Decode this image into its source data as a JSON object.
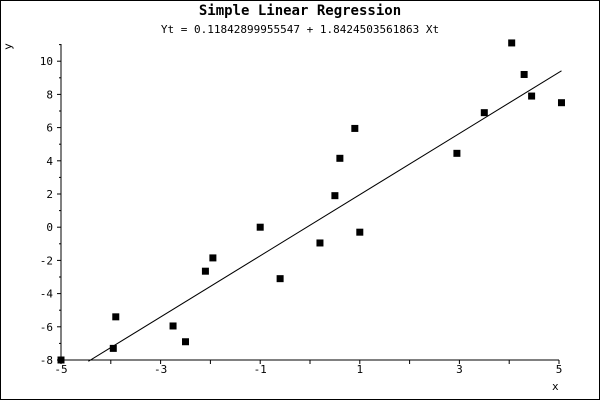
{
  "chart_data": {
    "type": "scatter",
    "title": "Simple Linear Regression",
    "subtitle": "Yt = 0.11842899955547 + 1.8424503561863 Xt",
    "xlabel": "x",
    "ylabel": "y",
    "xlim": [
      -5,
      5
    ],
    "ylim": [
      -8,
      11
    ],
    "x_ticks": [
      -5,
      -3,
      -1,
      1,
      3,
      5
    ],
    "y_ticks": [
      -8,
      -6,
      -4,
      -2,
      0,
      2,
      4,
      6,
      8,
      10
    ],
    "grid": false,
    "series": [
      {
        "marker": "square",
        "x": [
          -5.0,
          -3.95,
          -3.9,
          -2.75,
          -2.5,
          -2.1,
          -1.95,
          -1.0,
          -0.6,
          0.2,
          0.5,
          0.6,
          0.9,
          1.0,
          2.95,
          3.5,
          4.05,
          4.3,
          4.45,
          5.05
        ],
        "y": [
          -8.0,
          -7.3,
          -5.4,
          -5.95,
          -6.9,
          -2.65,
          -1.85,
          0.0,
          -3.1,
          -0.95,
          1.9,
          4.15,
          5.95,
          -0.3,
          4.45,
          6.9,
          11.1,
          9.2,
          7.9,
          7.5
        ]
      },
      {
        "type": "line",
        "intercept": 0.11842899955547,
        "slope": 1.8424503561863,
        "x_range": [
          -4.45,
          5.05
        ]
      }
    ]
  }
}
